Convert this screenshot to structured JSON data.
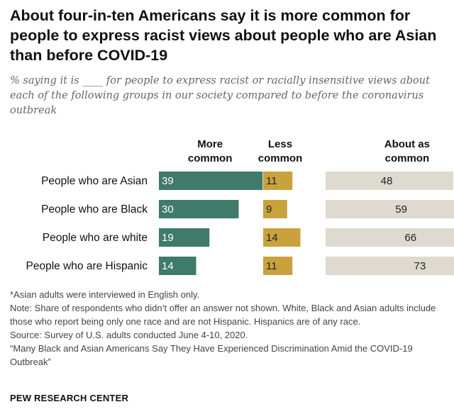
{
  "title": "About four-in-ten Americans say it is more common for people to express racist views about people who are Asian than before COVID-19",
  "subtitle": "% saying it is ____ for people to express racist or racially insensitive views about each of the following groups in our society compared to before the coronavirus outbreak",
  "notes": {
    "asterisk": "*Asian adults were interviewed in English only.",
    "note": "Note: Share of respondents who didn’t offer an answer not shown. White, Black and Asian adults include those who report being only one race and are not Hispanic. Hispanics are of any race.",
    "source": "Source: Survey of U.S. adults conducted June 4-10, 2020.",
    "report": "“Many Black and Asian Americans Say They Have Experienced Discrimination Amid the COVID-19 Outbreak”"
  },
  "footer": "PEW RESEARCH CENTER",
  "colors": {
    "more": "#3f7a6a",
    "less": "#c9a23d",
    "same": "#dedad0"
  },
  "chart_data": {
    "type": "bar",
    "categories": [
      "People who are Asian",
      "People who are Black",
      "People who are white",
      "People who are Hispanic"
    ],
    "series": [
      {
        "name": "More common",
        "name_lines": [
          "More",
          "common"
        ],
        "values": [
          39,
          30,
          19,
          14
        ]
      },
      {
        "name": "Less common",
        "name_lines": [
          "Less",
          "common"
        ],
        "values": [
          11,
          9,
          14,
          11
        ]
      },
      {
        "name": "About as common",
        "name_lines": [
          "About as",
          "common"
        ],
        "values": [
          48,
          59,
          66,
          73
        ]
      }
    ]
  }
}
